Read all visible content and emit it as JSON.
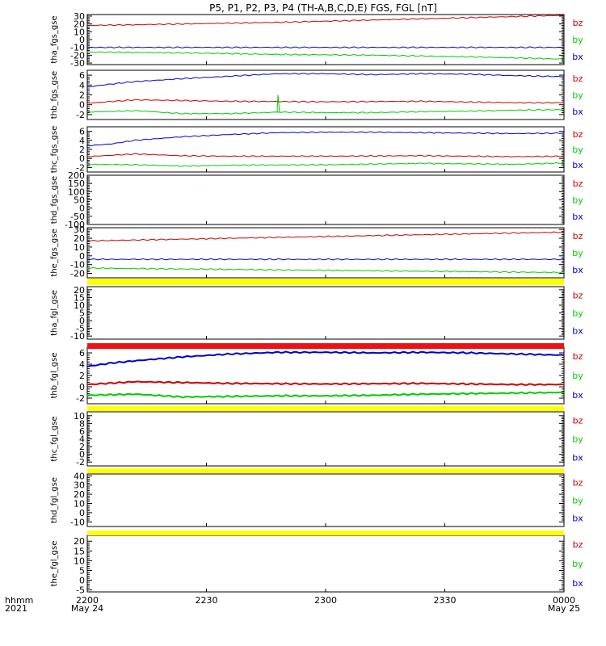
{
  "title": "P5, P1, P2, P3, P4 (TH-A,B,C,D,E) FGS, FGL [nT]",
  "x_axis": {
    "ticks": [
      {
        "label": "2200",
        "sub": "May 24"
      },
      {
        "label": "2230",
        "sub": ""
      },
      {
        "label": "2300",
        "sub": ""
      },
      {
        "label": "2330",
        "sub": ""
      },
      {
        "label": "0000",
        "sub": "May 25"
      }
    ],
    "left_label": "hhmm",
    "left_sub": "2021"
  },
  "colors": {
    "bx": "#0000cc",
    "by": "#00cc00",
    "bz": "#cc0000",
    "bar_yellow": "#ffff00",
    "bar_red": "#ee1111"
  },
  "chart_data": [
    {
      "type": "line",
      "ylabel": "tha_fgs_gse",
      "ylim": [
        -32,
        32
      ],
      "yticks": [
        30,
        20,
        10,
        0,
        -10,
        -20,
        -30
      ],
      "legend": [
        "bz",
        "by",
        "bx"
      ],
      "series": [
        {
          "name": "bz",
          "x": [
            0,
            0.2,
            0.4,
            0.6,
            0.8,
            1
          ],
          "values": [
            18,
            20,
            22,
            25,
            28,
            31
          ]
        },
        {
          "name": "by",
          "x": [
            0,
            0.2,
            0.4,
            0.6,
            0.8,
            1
          ],
          "values": [
            -16,
            -17,
            -19,
            -20,
            -22,
            -25
          ]
        },
        {
          "name": "bx",
          "x": [
            0,
            0.2,
            0.4,
            0.6,
            0.8,
            1
          ],
          "values": [
            -10,
            -10,
            -10,
            -10,
            -10,
            -10
          ]
        }
      ]
    },
    {
      "type": "line",
      "ylabel": "thb_fgs_gse",
      "ylim": [
        -3,
        7
      ],
      "yticks": [
        6,
        4,
        2,
        0,
        -2
      ],
      "legend": [
        "bz",
        "by",
        "bx"
      ],
      "series": [
        {
          "name": "bz",
          "x": [
            0,
            0.1,
            0.3,
            0.5,
            0.7,
            0.9,
            1
          ],
          "values": [
            0.3,
            1.0,
            0.7,
            0.6,
            0.7,
            0.4,
            0.4
          ]
        },
        {
          "name": "by",
          "x": [
            0,
            0.1,
            0.2,
            0.3,
            0.4,
            0.5,
            0.6,
            0.7,
            0.8,
            0.9,
            1
          ],
          "values": [
            -1.5,
            -1.2,
            -1.8,
            -1.8,
            -1.5,
            -1.6,
            -1.6,
            -1.4,
            -1.3,
            -1.1,
            -1.0
          ]
        },
        {
          "name": "bx",
          "x": [
            0,
            0.05,
            0.1,
            0.2,
            0.3,
            0.4,
            0.5,
            0.6,
            0.7,
            0.8,
            0.9,
            1
          ],
          "values": [
            3.6,
            4.2,
            4.7,
            5.3,
            5.8,
            6.3,
            6.3,
            6.1,
            6.3,
            6.2,
            5.9,
            5.7
          ]
        }
      ]
    },
    {
      "type": "line",
      "ylabel": "thc_fgs_gse",
      "ylim": [
        -3,
        7
      ],
      "yticks": [
        6,
        4,
        2,
        0,
        -2
      ],
      "legend": [
        "bz",
        "by",
        "bx"
      ],
      "series": [
        {
          "name": "bz",
          "x": [
            0,
            0.1,
            0.2,
            0.3,
            0.5,
            0.7,
            0.9,
            1
          ],
          "values": [
            0.4,
            1.0,
            0.6,
            0.5,
            0.5,
            0.6,
            0.4,
            0.5
          ]
        },
        {
          "name": "by",
          "x": [
            0,
            0.1,
            0.2,
            0.3,
            0.5,
            0.7,
            0.9,
            1
          ],
          "values": [
            -1.3,
            -1.4,
            -1.7,
            -1.5,
            -1.4,
            -1.1,
            -1.3,
            -1.0
          ]
        },
        {
          "name": "bx",
          "x": [
            0,
            0.05,
            0.1,
            0.2,
            0.3,
            0.4,
            0.5,
            0.6,
            0.7,
            0.8,
            0.9,
            1
          ],
          "values": [
            2.8,
            3.2,
            4.0,
            4.8,
            5.3,
            5.7,
            5.8,
            5.8,
            5.7,
            5.6,
            5.5,
            5.6
          ]
        }
      ]
    },
    {
      "type": "line",
      "ylabel": "thd_fgs_gse",
      "ylim": [
        -100,
        200
      ],
      "yticks": [
        200,
        150,
        100,
        50,
        0,
        -50,
        -100
      ],
      "legend": [
        "bz",
        "by",
        "bx"
      ],
      "series": []
    },
    {
      "type": "line",
      "ylabel": "the_fgs_gse",
      "ylim": [
        -25,
        32
      ],
      "yticks": [
        30,
        20,
        10,
        0,
        -10,
        -20
      ],
      "legend": [
        "bz",
        "by",
        "bx"
      ],
      "series": [
        {
          "name": "bz",
          "x": [
            0,
            0.2,
            0.4,
            0.6,
            0.8,
            1
          ],
          "values": [
            17,
            19,
            21,
            23,
            25,
            27
          ]
        },
        {
          "name": "by",
          "x": [
            0,
            0.2,
            0.4,
            0.6,
            0.8,
            1
          ],
          "values": [
            -14,
            -15,
            -16,
            -17,
            -18,
            -19
          ]
        },
        {
          "name": "bx",
          "x": [
            0,
            0.5,
            1
          ],
          "values": [
            -4,
            -4,
            -4
          ]
        }
      ]
    },
    {
      "type": "line",
      "ylabel": "tha_fgl_gse",
      "ylim": [
        -12,
        22
      ],
      "yticks": [
        20,
        15,
        10,
        5,
        0,
        -5,
        -10
      ],
      "legend": [
        "bz",
        "by",
        "bx"
      ],
      "series": []
    },
    {
      "type": "line",
      "ylabel": "thb_fgl_gse",
      "ylim": [
        -3,
        7
      ],
      "yticks": [
        6,
        4,
        2,
        0,
        -2
      ],
      "legend": [
        "bz",
        "by",
        "bx"
      ],
      "series": [
        {
          "name": "bz",
          "x": [
            0,
            0.1,
            0.3,
            0.5,
            0.7,
            0.9,
            1
          ],
          "values": [
            0.4,
            0.9,
            0.6,
            0.5,
            0.6,
            0.4,
            0.4
          ]
        },
        {
          "name": "by",
          "x": [
            0,
            0.1,
            0.2,
            0.3,
            0.4,
            0.5,
            0.6,
            0.7,
            0.8,
            0.9,
            1
          ],
          "values": [
            -1.5,
            -1.3,
            -1.8,
            -1.7,
            -1.6,
            -1.6,
            -1.5,
            -1.3,
            -1.2,
            -1.1,
            -1.0
          ]
        },
        {
          "name": "bx",
          "x": [
            0,
            0.05,
            0.1,
            0.2,
            0.3,
            0.4,
            0.5,
            0.6,
            0.7,
            0.8,
            0.9,
            1
          ],
          "values": [
            3.6,
            4.2,
            4.6,
            5.3,
            5.8,
            6.1,
            6.1,
            6.0,
            6.1,
            6.0,
            5.8,
            5.6
          ]
        }
      ]
    },
    {
      "type": "line",
      "ylabel": "thc_fgl_gse",
      "ylim": [
        -3,
        11
      ],
      "yticks": [
        10,
        8,
        6,
        4,
        2,
        0,
        -2
      ],
      "legend": [
        "bz",
        "by",
        "bx"
      ],
      "series": []
    },
    {
      "type": "line",
      "ylabel": "thd_fgl_gse",
      "ylim": [
        -15,
        42
      ],
      "yticks": [
        40,
        30,
        20,
        10,
        0,
        -10
      ],
      "legend": [
        "bz",
        "by",
        "bx"
      ],
      "series": []
    },
    {
      "type": "line",
      "ylabel": "the_fgl_gse",
      "ylim": [
        -6,
        23
      ],
      "yticks": [
        20,
        15,
        10,
        5,
        0,
        -5
      ],
      "legend": [
        "bz",
        "by",
        "bx"
      ],
      "series": []
    }
  ]
}
